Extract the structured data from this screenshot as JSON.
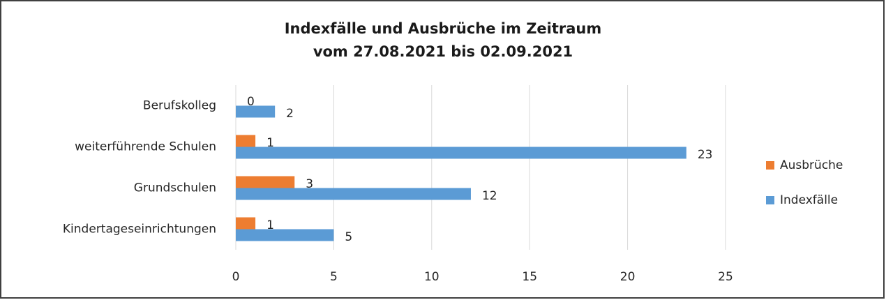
{
  "chart_data": {
    "type": "bar",
    "orientation": "horizontal",
    "title": [
      "Indexfälle  und Ausbrüche  im Zeitraum",
      "vom 27.08.2021  bis 02.09.2021"
    ],
    "categories": [
      "Berufskolleg",
      "weiterführende Schulen",
      "Grundschulen",
      "Kindertageseinrichtungen"
    ],
    "series": [
      {
        "name": "Ausbrüche",
        "color": "#ed7d31",
        "values": [
          0,
          1,
          3,
          1
        ]
      },
      {
        "name": "Indexfälle",
        "color": "#5b9bd5",
        "values": [
          2,
          23,
          12,
          5
        ]
      }
    ],
    "xlim": [
      0,
      25
    ],
    "xticks": [
      0,
      5,
      10,
      15,
      20,
      25
    ],
    "grid": true,
    "legend": "right"
  }
}
